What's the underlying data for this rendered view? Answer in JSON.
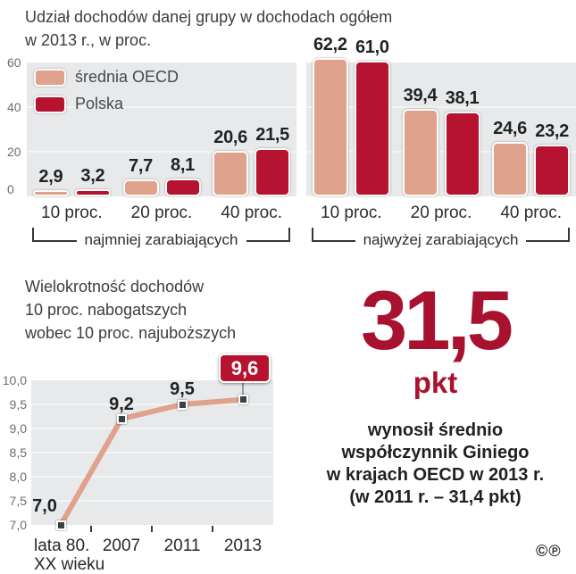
{
  "colors": {
    "oecd": "#dfa28c",
    "polska": "#b5132f",
    "accent": "#a9122f",
    "panel_background": "#e8e9ea",
    "gridline": "#f3f4f4",
    "text_dark": "#1f2123",
    "text_muted": "#6a6d71"
  },
  "chart_data": [
    {
      "type": "bar",
      "title": "Udział dochodów danej grupy w dochodach ogółem\nw 2013 r., w proc.",
      "categories": [
        "10 proc.",
        "20 proc.",
        "40 proc.",
        "10 proc.",
        "20 proc.",
        "40 proc."
      ],
      "group_brackets": [
        {
          "label": "najmniej zarabiających",
          "category_indexes": [
            0,
            1,
            2
          ]
        },
        {
          "label": "najwyżej zarabiających",
          "category_indexes": [
            3,
            4,
            5
          ]
        }
      ],
      "series": [
        {
          "name": "średnia OECD",
          "color": "#dfa28c",
          "values": [
            2.9,
            7.7,
            20.6,
            62.2,
            39.4,
            24.6
          ],
          "value_labels": [
            "2,9",
            "7,7",
            "20,6",
            "62,2",
            "39,4",
            "24,6"
          ]
        },
        {
          "name": "Polska",
          "color": "#b5132f",
          "values": [
            3.2,
            8.1,
            21.5,
            61.0,
            38.1,
            23.2
          ],
          "value_labels": [
            "3,2",
            "8,1",
            "21,5",
            "61,0",
            "38,1",
            "23,2"
          ]
        }
      ],
      "yticks": [
        {
          "value": 0,
          "label": "0"
        },
        {
          "value": 20,
          "label": "20"
        },
        {
          "value": 40,
          "label": "40"
        },
        {
          "value": 60,
          "label": "60"
        }
      ],
      "ylim": [
        0,
        60
      ],
      "grid": "horizontal",
      "legend_position": "top-left-inside"
    },
    {
      "type": "line",
      "title": "Wielokrotność dochodów\n10 proc. nabogatszych\nwobec 10 proc. najuboższych",
      "x": [
        "lata 80.\nXX wieku",
        "2007",
        "2011",
        "2013"
      ],
      "values": [
        7.0,
        9.2,
        9.5,
        9.6
      ],
      "value_labels": [
        "7,0",
        "9,2",
        "9,5",
        "9,6"
      ],
      "highlight_last_value": true,
      "yticks": [
        {
          "value": 10,
          "label": "10,0"
        },
        {
          "value": 9.5,
          "label": "9,5"
        },
        {
          "value": 9,
          "label": "9,0"
        },
        {
          "value": 8.5,
          "label": "8,5"
        },
        {
          "value": 8,
          "label": "8,0"
        },
        {
          "value": 7.5,
          "label": "7,5"
        },
        {
          "value": 7,
          "label": "7,0"
        }
      ],
      "ylim": [
        7,
        10
      ],
      "line_color": "#dfa28c",
      "grid": "horizontal",
      "legend_position": "none"
    }
  ],
  "callout": {
    "value": "31,5",
    "unit": "pkt",
    "description": "wynosił średnio\nwspółczynnik Giniego\nw krajach OECD w 2013 r.\n(w 2011 r. – 31,4 pkt)",
    "color": "#a9122f"
  },
  "footer": {
    "marks": "©℗"
  }
}
